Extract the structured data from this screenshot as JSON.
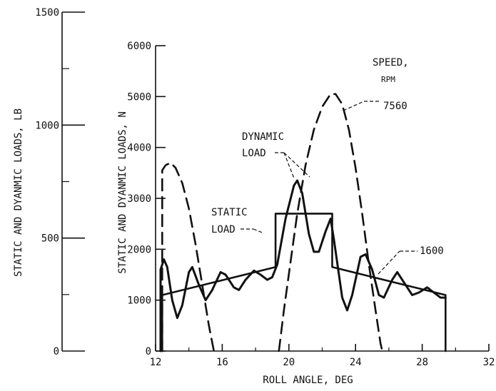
{
  "chart_data": {
    "type": "line",
    "xlabel": "ROLL ANGLE, DEG",
    "x_ticks": [
      12,
      16,
      20,
      24,
      28,
      32
    ],
    "xlim": [
      12,
      32
    ],
    "ylabel_n": "STATIC AND DYANMIC LOADS, N",
    "y_ticks_n": [
      0,
      1000,
      2000,
      3000,
      4000,
      5000,
      6000
    ],
    "ylim_n": [
      0,
      6000
    ],
    "ylabel_lb": "STATIC AND DYANMIC LOADS, LB",
    "y_ticks_lb": [
      0,
      500,
      1000,
      1500
    ],
    "ylim_lb": [
      0,
      1500
    ],
    "grid": false,
    "annotations": {
      "speed_title": "SPEED,",
      "speed_unit": "RPM",
      "speed_high": "7560",
      "speed_low": "1600",
      "dynamic_line1": "DYNAMIC",
      "dynamic_line2": "LOAD",
      "static_line1": "STATIC",
      "static_line2": "LOAD"
    },
    "series": [
      {
        "label": "static load",
        "style": "solid",
        "points": [
          [
            12.4,
            0
          ],
          [
            12.4,
            1100
          ],
          [
            19.2,
            1650
          ],
          [
            19.2,
            2700
          ],
          [
            22.6,
            2700
          ],
          [
            22.6,
            1650
          ],
          [
            29.4,
            1100
          ],
          [
            29.4,
            0
          ]
        ]
      },
      {
        "label": "dynamic load 1600 rpm",
        "style": "solid",
        "points": [
          [
            12.3,
            0
          ],
          [
            12.3,
            1600
          ],
          [
            12.5,
            1800
          ],
          [
            12.7,
            1650
          ],
          [
            13.0,
            1000
          ],
          [
            13.3,
            650
          ],
          [
            13.6,
            900
          ],
          [
            14.0,
            1550
          ],
          [
            14.2,
            1650
          ],
          [
            14.6,
            1300
          ],
          [
            15.0,
            1000
          ],
          [
            15.4,
            1200
          ],
          [
            15.9,
            1550
          ],
          [
            16.2,
            1500
          ],
          [
            16.7,
            1250
          ],
          [
            17.0,
            1200
          ],
          [
            17.4,
            1400
          ],
          [
            17.9,
            1580
          ],
          [
            18.3,
            1500
          ],
          [
            18.7,
            1400
          ],
          [
            19.0,
            1450
          ],
          [
            19.3,
            1700
          ],
          [
            19.8,
            2600
          ],
          [
            20.3,
            3250
          ],
          [
            20.5,
            3350
          ],
          [
            20.8,
            3100
          ],
          [
            21.2,
            2300
          ],
          [
            21.5,
            1950
          ],
          [
            21.8,
            1950
          ],
          [
            22.2,
            2350
          ],
          [
            22.5,
            2600
          ],
          [
            22.7,
            2200
          ],
          [
            23.2,
            1050
          ],
          [
            23.5,
            800
          ],
          [
            23.8,
            1100
          ],
          [
            24.3,
            1850
          ],
          [
            24.6,
            1900
          ],
          [
            25.0,
            1600
          ],
          [
            25.4,
            1100
          ],
          [
            25.7,
            1050
          ],
          [
            26.2,
            1400
          ],
          [
            26.5,
            1550
          ],
          [
            27.0,
            1300
          ],
          [
            27.4,
            1100
          ],
          [
            27.8,
            1150
          ],
          [
            28.3,
            1250
          ],
          [
            28.7,
            1150
          ],
          [
            29.1,
            1050
          ],
          [
            29.4,
            1050
          ]
        ]
      },
      {
        "label": "dynamic load 7560 rpm (left lobe)",
        "style": "dashed",
        "points": [
          [
            12.4,
            0
          ],
          [
            12.4,
            3550
          ],
          [
            12.6,
            3650
          ],
          [
            12.9,
            3700
          ],
          [
            13.2,
            3600
          ],
          [
            13.6,
            3300
          ],
          [
            14.0,
            2800
          ],
          [
            14.4,
            2100
          ],
          [
            14.8,
            1300
          ],
          [
            15.2,
            500
          ],
          [
            15.5,
            0
          ]
        ]
      },
      {
        "label": "dynamic load 7560 rpm (right lobe)",
        "style": "dashed",
        "points": [
          [
            19.4,
            0
          ],
          [
            19.7,
            800
          ],
          [
            20.1,
            1750
          ],
          [
            20.5,
            2700
          ],
          [
            21.0,
            3650
          ],
          [
            21.5,
            4350
          ],
          [
            22.0,
            4800
          ],
          [
            22.5,
            5050
          ],
          [
            22.8,
            5050
          ],
          [
            23.2,
            4850
          ],
          [
            23.6,
            4350
          ],
          [
            24.0,
            3600
          ],
          [
            24.4,
            2700
          ],
          [
            24.8,
            1700
          ],
          [
            25.2,
            800
          ],
          [
            25.5,
            150
          ],
          [
            25.6,
            0
          ]
        ]
      }
    ]
  }
}
